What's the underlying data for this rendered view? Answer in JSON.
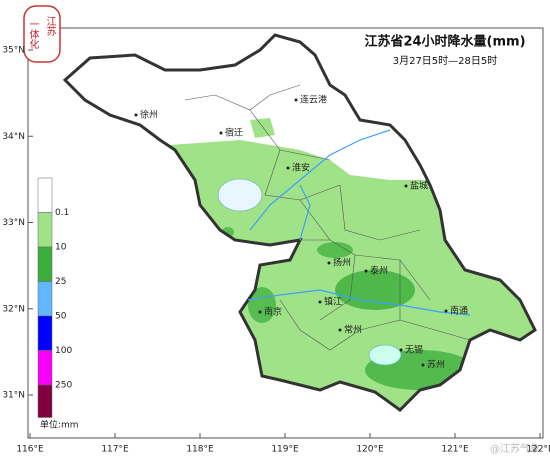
{
  "header": {
    "title": "江苏省24小时降水量(mm)",
    "subtitle": "3月27日5时—28日5时"
  },
  "logo": {
    "text_left": "一体化",
    "text_right": "江苏"
  },
  "lat_ticks": [
    {
      "value": 35,
      "label": "35°N"
    },
    {
      "value": 34,
      "label": "34°N"
    },
    {
      "value": 33,
      "label": "33°N"
    },
    {
      "value": 32,
      "label": "32°N"
    },
    {
      "value": 31,
      "label": "31°N"
    }
  ],
  "lon_ticks": [
    {
      "value": 116,
      "label": "116°E"
    },
    {
      "value": 117,
      "label": "117°E"
    },
    {
      "value": 118,
      "label": "118°E"
    },
    {
      "value": 119,
      "label": "119°E"
    },
    {
      "value": 120,
      "label": "120°E"
    },
    {
      "value": 121,
      "label": "121°E"
    },
    {
      "value": 122,
      "label": "122°E"
    }
  ],
  "cities": [
    "徐州",
    "连云港",
    "宿迁",
    "淮安",
    "盐城",
    "扬州",
    "泰州",
    "南京",
    "镇江",
    "常州",
    "南通",
    "无锡",
    "苏州"
  ],
  "legend": {
    "levels": [
      {
        "label": "0.1",
        "color": "#ffffff"
      },
      {
        "label": "10",
        "color": "#9fe287"
      },
      {
        "label": "25",
        "color": "#3aae3a"
      },
      {
        "label": "50",
        "color": "#61b8ff"
      },
      {
        "label": "100",
        "color": "#0000fe"
      },
      {
        "label": "250",
        "color": "#fa00fa"
      }
    ],
    "top_color": "#800040",
    "unit": "单位:mm"
  },
  "watermark": "@江苏气象"
}
